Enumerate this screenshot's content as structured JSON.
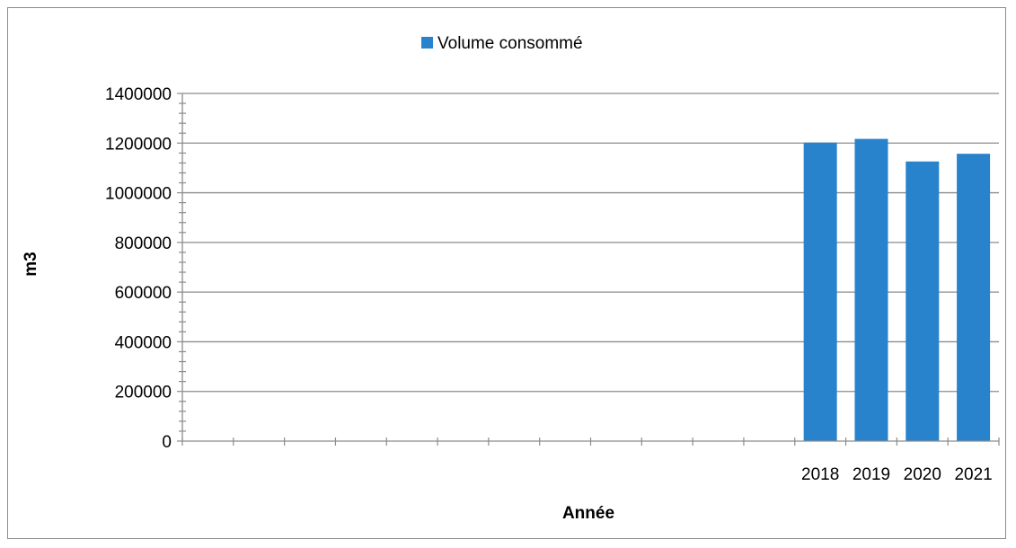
{
  "chart_data": {
    "type": "bar",
    "title": "",
    "xlabel": "Année",
    "ylabel": "m3",
    "ylim": [
      0,
      1400000
    ],
    "yticks": [
      0,
      200000,
      400000,
      600000,
      800000,
      1000000,
      1200000,
      1400000
    ],
    "ytick_labels": [
      "0",
      "200000",
      "400000",
      "600000",
      "800000",
      "1000000",
      "1200000",
      "1400000"
    ],
    "categories": [
      "",
      "",
      "",
      "",
      "",
      "",
      "",
      "",
      "",
      "",
      "",
      "",
      "2018",
      "2019",
      "2020",
      "2021"
    ],
    "series": [
      {
        "name": "Volume consommé",
        "color": "#2983cc",
        "values": [
          null,
          null,
          null,
          null,
          null,
          null,
          null,
          null,
          null,
          null,
          null,
          null,
          1202000,
          1217000,
          1126000,
          1157000
        ]
      }
    ],
    "grid": "horizontal",
    "legend_position": "top"
  }
}
